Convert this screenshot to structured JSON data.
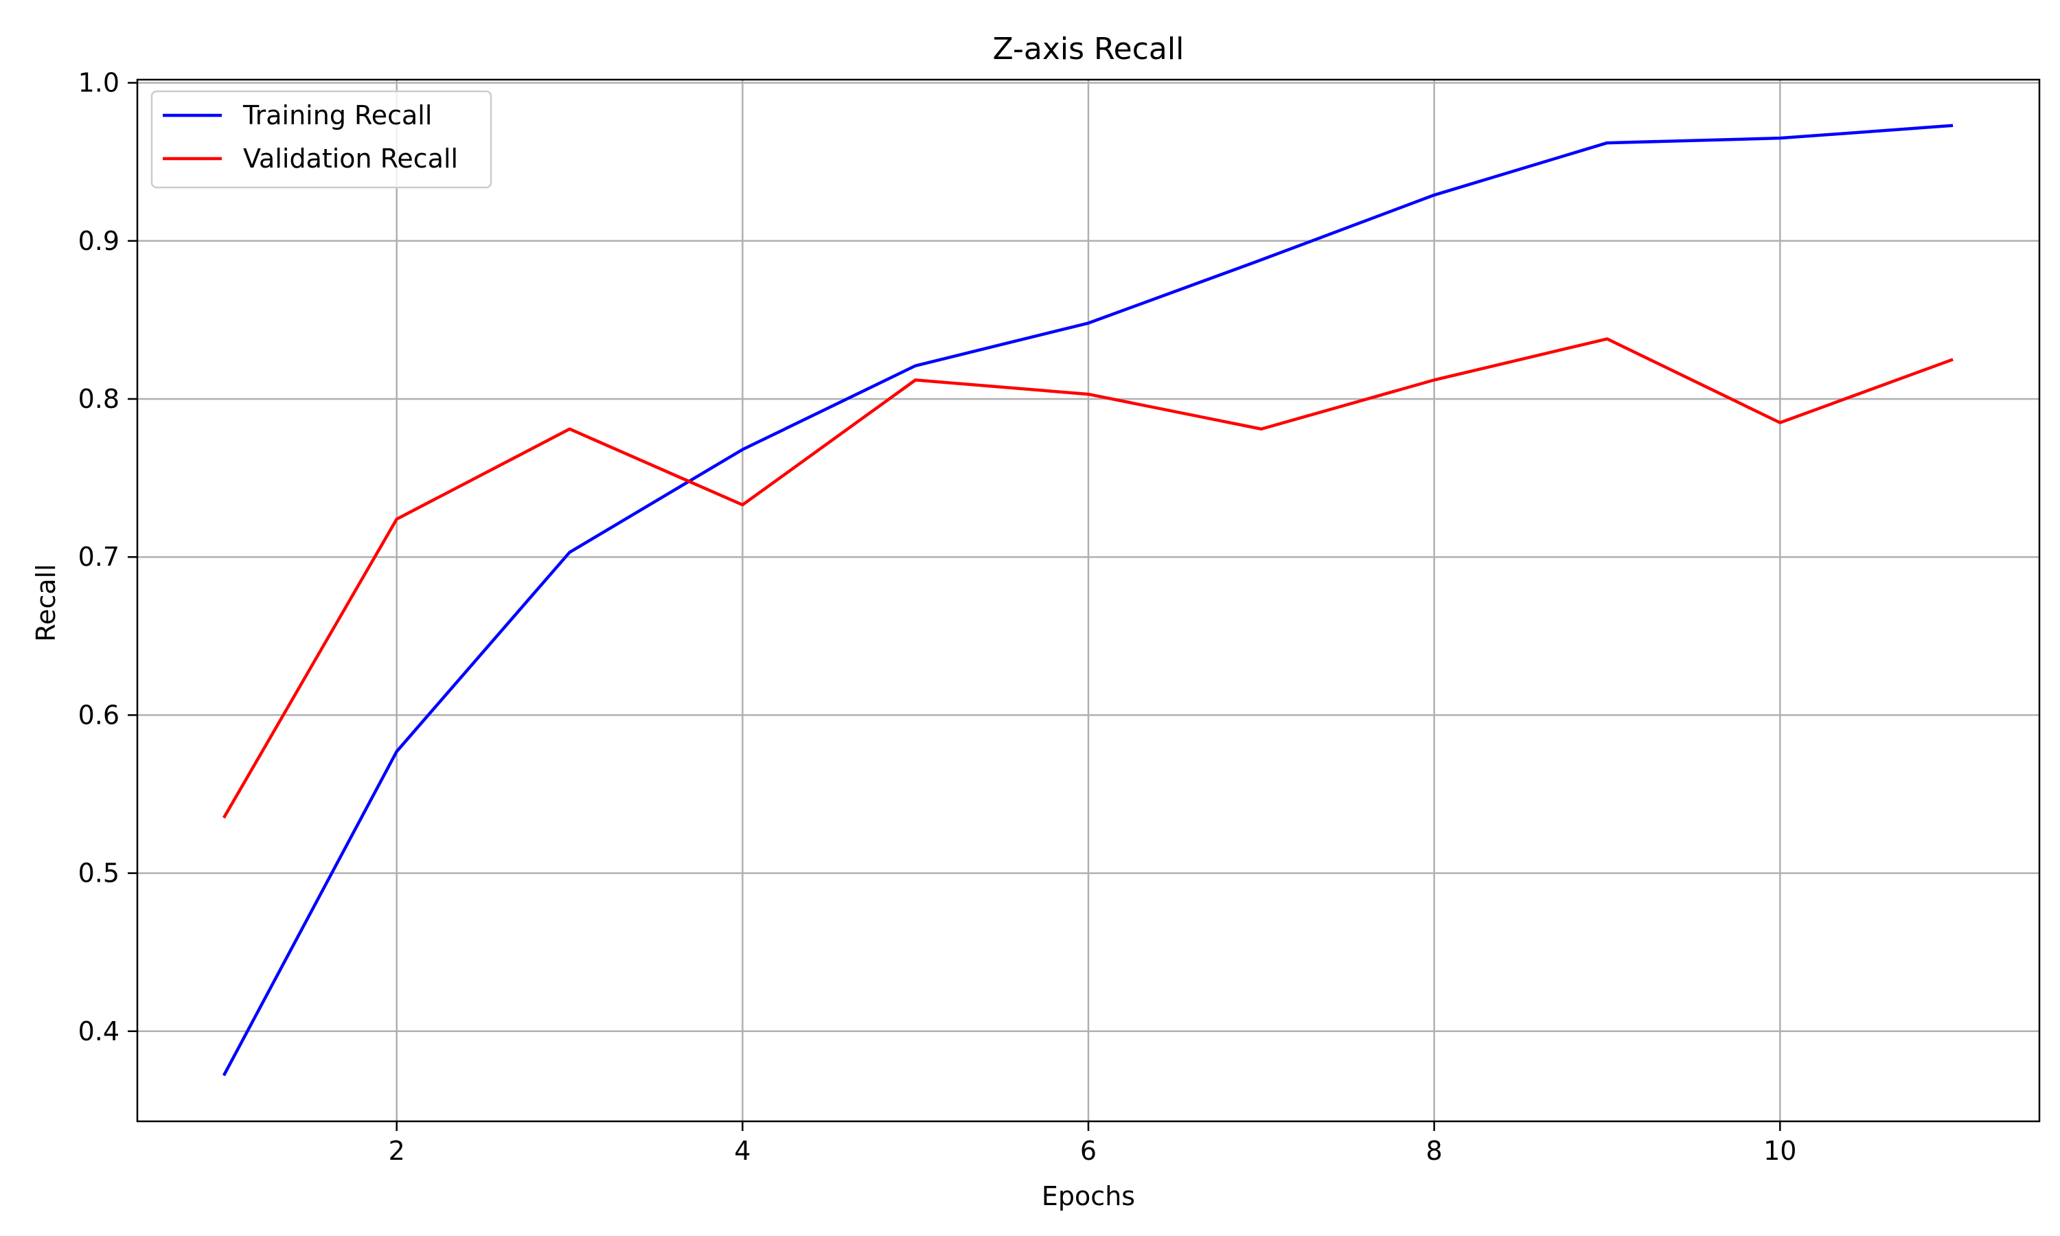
{
  "chart_data": {
    "type": "line",
    "title": "Z-axis Recall",
    "xlabel": "Epochs",
    "ylabel": "Recall",
    "xlim": [
      0.5,
      11.5
    ],
    "ylim": [
      0.343,
      1.002
    ],
    "xticks": [
      2,
      4,
      6,
      8,
      10
    ],
    "xtick_labels": [
      "2",
      "4",
      "6",
      "8",
      "10"
    ],
    "yticks": [
      0.4,
      0.5,
      0.6,
      0.7,
      0.8,
      0.9,
      1.0
    ],
    "ytick_labels": [
      "0.4",
      "0.5",
      "0.6",
      "0.7",
      "0.8",
      "0.9",
      "1.0"
    ],
    "grid": true,
    "legend_position": "top-left",
    "x": [
      1,
      2,
      3,
      4,
      5,
      6,
      7,
      8,
      9,
      10,
      11
    ],
    "series": [
      {
        "name": "Training Recall",
        "color": "#0000ff",
        "values": [
          0.372,
          0.577,
          0.703,
          0.768,
          0.821,
          0.848,
          0.888,
          0.929,
          0.962,
          0.965,
          0.973
        ]
      },
      {
        "name": "Validation Recall",
        "color": "#ff0000",
        "values": [
          0.535,
          0.724,
          0.781,
          0.733,
          0.812,
          0.803,
          0.781,
          0.812,
          0.838,
          0.785,
          0.825
        ]
      }
    ]
  }
}
